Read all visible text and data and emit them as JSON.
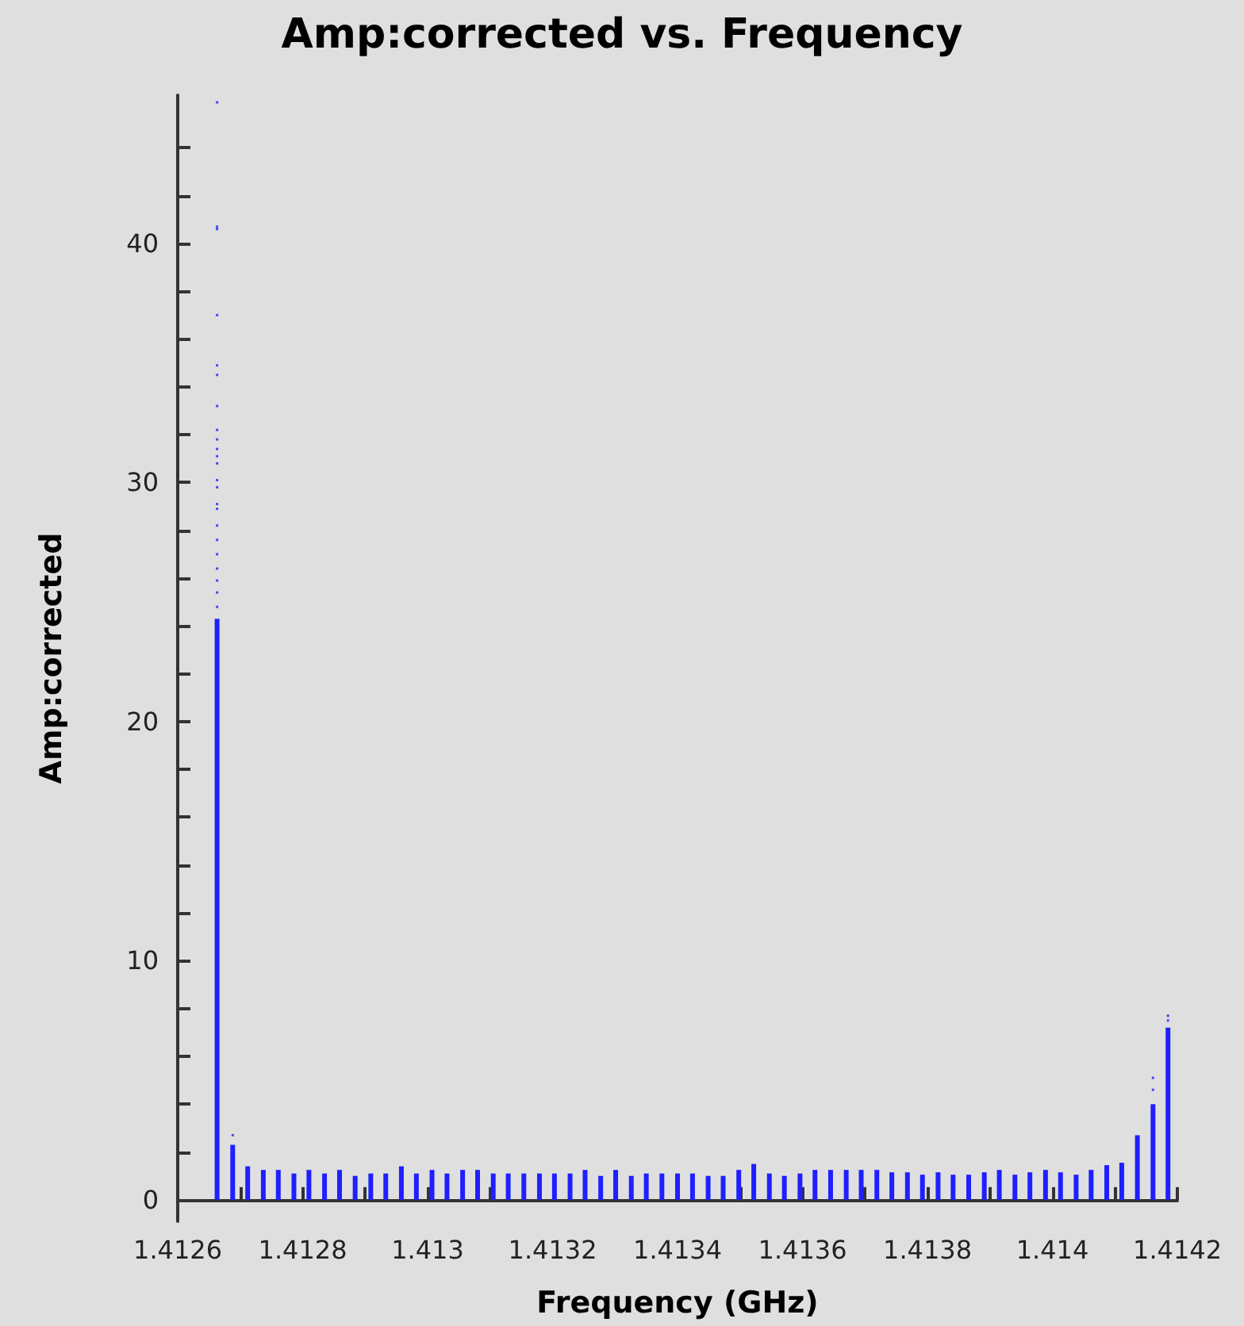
{
  "chart_data": {
    "type": "bar",
    "title": "Amp:corrected vs. Frequency",
    "xlabel": "Frequency (GHz)",
    "ylabel": "Amp:corrected",
    "x": [
      1.412663,
      1.412688,
      1.412712,
      1.412737,
      1.412761,
      1.412786,
      1.41281,
      1.412835,
      1.412859,
      1.412884,
      1.412909,
      1.412933,
      1.412958,
      1.412982,
      1.413007,
      1.413031,
      1.413056,
      1.41308,
      1.413105,
      1.413129,
      1.413154,
      1.413179,
      1.413203,
      1.413228,
      1.413252,
      1.413277,
      1.413301,
      1.413326,
      1.41335,
      1.413375,
      1.4134,
      1.413424,
      1.413449,
      1.413473,
      1.413498,
      1.413522,
      1.413547,
      1.413571,
      1.413596,
      1.41362,
      1.413645,
      1.41367,
      1.413694,
      1.413719,
      1.413743,
      1.413768,
      1.413792,
      1.413817,
      1.413841,
      1.413866,
      1.413891,
      1.413915,
      1.41394,
      1.413964,
      1.413989,
      1.414013,
      1.414038,
      1.414062,
      1.414087,
      1.414111,
      1.414136,
      1.414161,
      1.414185
    ],
    "series": [
      {
        "color": "#1f1fff",
        "values": [
          24.3,
          2.3,
          1.4,
          1.25,
          1.25,
          1.1,
          1.25,
          1.1,
          1.25,
          1.0,
          1.1,
          1.1,
          1.4,
          1.1,
          1.25,
          1.1,
          1.25,
          1.25,
          1.1,
          1.1,
          1.1,
          1.1,
          1.1,
          1.1,
          1.25,
          1.0,
          1.25,
          1.0,
          1.1,
          1.1,
          1.1,
          1.1,
          1.0,
          1.0,
          1.25,
          1.5,
          1.1,
          1.0,
          1.1,
          1.25,
          1.25,
          1.25,
          1.25,
          1.25,
          1.15,
          1.15,
          1.05,
          1.15,
          1.05,
          1.05,
          1.15,
          1.25,
          1.05,
          1.15,
          1.25,
          1.15,
          1.05,
          1.25,
          1.45,
          1.55,
          2.7,
          4.0,
          7.2
        ]
      },
      {
        "type": "scatter",
        "color": "#1f1fff",
        "x": [
          1.412663,
          1.412663,
          1.412663,
          1.412663,
          1.412663,
          1.412663,
          1.412663,
          1.412663,
          1.412663,
          1.412663,
          1.412663,
          1.412663,
          1.412663,
          1.412663,
          1.412663,
          1.412663,
          1.412663,
          1.412663,
          1.412663,
          1.412663,
          1.412663,
          1.412663,
          1.412663,
          1.412688,
          1.414161,
          1.414161,
          1.414185,
          1.414185
        ],
        "values": [
          45.9,
          40.7,
          40.6,
          37.0,
          34.9,
          34.5,
          33.2,
          32.2,
          31.8,
          31.4,
          31.1,
          30.8,
          30.1,
          29.8,
          29.1,
          28.9,
          28.2,
          27.6,
          27.0,
          26.4,
          25.9,
          25.4,
          24.8,
          2.7,
          4.6,
          5.1,
          7.5,
          7.7
        ]
      }
    ],
    "xlim": [
      1.4126,
      1.4142
    ],
    "xticks": [
      1.4126,
      {
        "value": 1.4127,
        "label": null
      },
      1.4128,
      {
        "value": 1.4129,
        "label": null
      },
      1.413,
      {
        "value": 1.4131,
        "label": null
      },
      1.4132,
      {
        "value": 1.4133,
        "label": null
      },
      1.4134,
      {
        "value": 1.4135,
        "label": null
      },
      1.4136,
      {
        "value": 1.4137,
        "label": null
      },
      1.4138,
      {
        "value": 1.4139,
        "label": null
      },
      1.414,
      {
        "value": 1.4141,
        "label": null
      },
      1.4142
    ],
    "ylim": [
      -0.9,
      46.2
    ],
    "yticks": [
      0,
      {
        "value": 2,
        "label": null
      },
      {
        "value": 4,
        "label": null
      },
      {
        "value": 6,
        "label": null
      },
      {
        "value": 8,
        "label": null
      },
      10,
      {
        "value": 12,
        "label": null
      },
      {
        "value": 14,
        "label": null
      },
      {
        "value": 16,
        "label": null
      },
      {
        "value": 18,
        "label": null
      },
      20,
      {
        "value": 22,
        "label": null
      },
      {
        "value": 24,
        "label": null
      },
      {
        "value": 26,
        "label": null
      },
      {
        "value": 28,
        "label": null
      },
      30,
      {
        "value": 32,
        "label": null
      },
      {
        "value": 34,
        "label": null
      },
      {
        "value": 36,
        "label": null
      },
      {
        "value": 38,
        "label": null
      },
      40,
      {
        "value": 42,
        "label": null
      },
      {
        "value": 44,
        "label": null
      }
    ],
    "marker": "square"
  }
}
